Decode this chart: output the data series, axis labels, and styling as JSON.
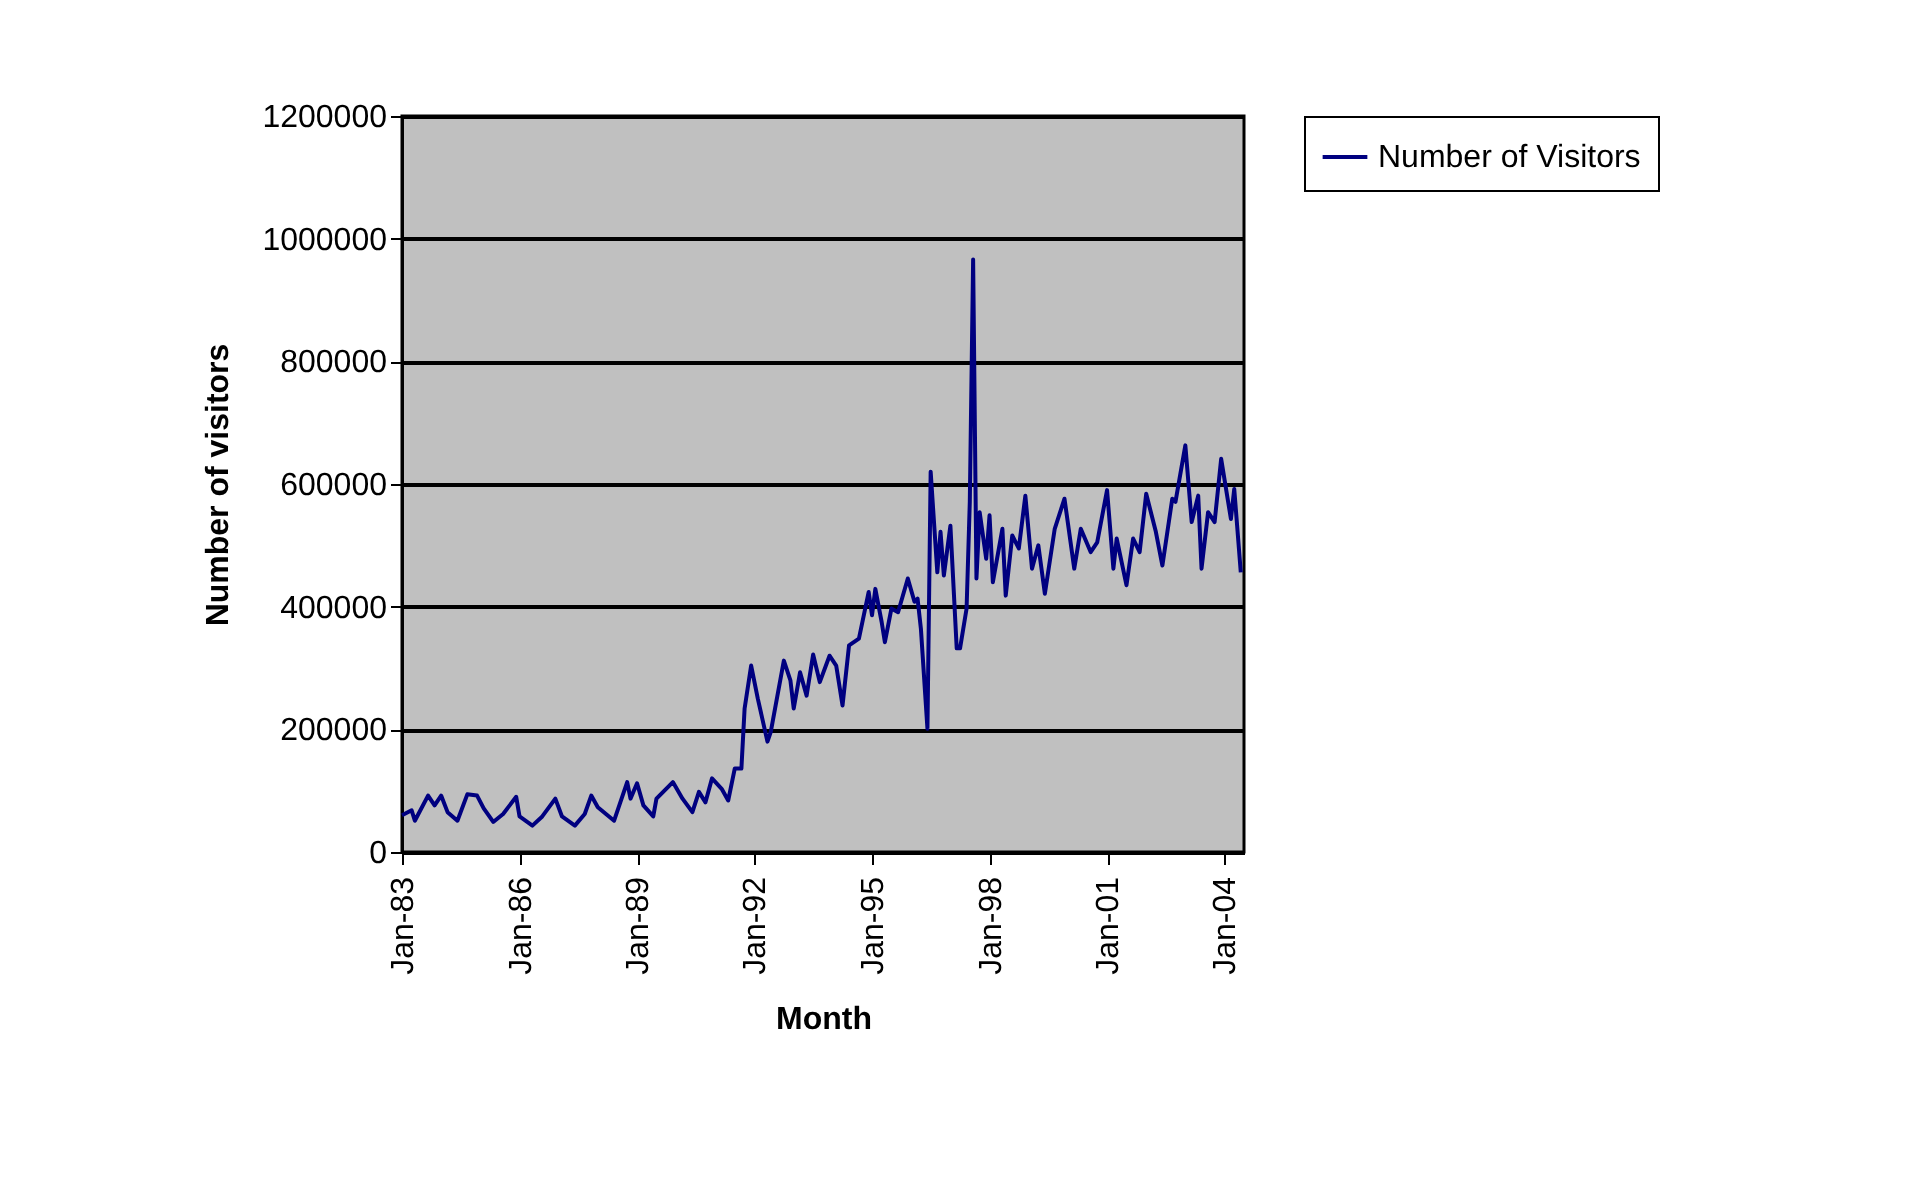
{
  "chart_data": {
    "type": "line",
    "xlabel": "Month",
    "ylabel": "Number of visitors",
    "legend": "right",
    "grid": "y",
    "marker": "none",
    "line_style": "solid",
    "xlim": [
      "1983-01",
      "2004-07"
    ],
    "xticks": [
      {
        "value": "1983-01",
        "label": "Jan-83"
      },
      {
        "value": "1986-01",
        "label": "Jan-86"
      },
      {
        "value": "1989-01",
        "label": "Jan-89"
      },
      {
        "value": "1992-01",
        "label": "Jan-92"
      },
      {
        "value": "1995-01",
        "label": "Jan-95"
      },
      {
        "value": "1998-01",
        "label": "Jan-98"
      },
      {
        "value": "2001-01",
        "label": "Jan-01"
      },
      {
        "value": "2004-01",
        "label": "Jan-04"
      }
    ],
    "ylim": [
      0,
      1200000
    ],
    "yticks": [
      0,
      200000,
      400000,
      600000,
      800000,
      1000000,
      1200000
    ],
    "x": [
      "1983-01",
      "1983-04",
      "1983-05",
      "1983-09",
      "1983-11",
      "1984-01",
      "1984-03",
      "1984-06",
      "1984-09",
      "1984-12",
      "1985-02",
      "1985-05",
      "1985-08",
      "1985-12",
      "1986-01",
      "1986-05",
      "1986-08",
      "1986-12",
      "1987-02",
      "1987-06",
      "1987-09",
      "1987-11",
      "1988-01",
      "1988-06",
      "1988-10",
      "1988-11",
      "1989-01",
      "1989-03",
      "1989-06",
      "1989-07",
      "1989-12",
      "1990-03",
      "1990-06",
      "1990-08",
      "1990-10",
      "1990-12",
      "1991-03",
      "1991-05",
      "1991-07",
      "1991-09",
      "1991-10",
      "1991-12",
      "1992-02",
      "1992-05",
      "1992-06",
      "1992-10",
      "1992-12",
      "1993-01",
      "1993-03",
      "1993-05",
      "1993-07",
      "1993-09",
      "1993-12",
      "1994-02",
      "1994-04",
      "1994-06",
      "1994-09",
      "1994-12",
      "1995-01",
      "1995-02",
      "1995-04",
      "1995-05",
      "1995-07",
      "1995-09",
      "1995-12",
      "1996-02",
      "1996-03",
      "1996-04",
      "1996-06",
      "1996-07",
      "1996-09",
      "1996-10",
      "1996-11",
      "1997-01",
      "1997-03",
      "1997-04",
      "1997-06",
      "1997-07",
      "1997-08",
      "1997-09",
      "1997-10",
      "1997-12",
      "1998-01",
      "1998-02",
      "1998-05",
      "1998-06",
      "1998-08",
      "1998-10",
      "1998-12",
      "1999-02",
      "1999-04",
      "1999-06",
      "1999-09",
      "1999-12",
      "2000-03",
      "2000-05",
      "2000-08",
      "2000-10",
      "2001-01",
      "2001-03",
      "2001-04",
      "2001-07",
      "2001-09",
      "2001-11",
      "2002-01",
      "2002-04",
      "2002-06",
      "2002-09",
      "2002-10",
      "2003-01",
      "2003-03",
      "2003-05",
      "2003-06",
      "2003-08",
      "2003-10",
      "2003-12",
      "2004-03",
      "2004-04",
      "2004-06"
    ],
    "series": [
      {
        "name": "Number of Visitors",
        "color": "#000080",
        "values": [
          60000,
          68000,
          51000,
          92000,
          76000,
          92000,
          65000,
          51000,
          94000,
          92000,
          71000,
          49000,
          62000,
          90000,
          58000,
          43000,
          58000,
          87000,
          58000,
          43000,
          62000,
          92000,
          73000,
          51000,
          114000,
          87000,
          112000,
          76000,
          58000,
          87000,
          114000,
          87000,
          65000,
          98000,
          81000,
          120000,
          103000,
          84000,
          136000,
          136000,
          234000,
          304000,
          250000,
          180000,
          196000,
          312000,
          280000,
          234000,
          293000,
          255000,
          322000,
          277000,
          320000,
          304000,
          239000,
          337000,
          348000,
          424000,
          386000,
          429000,
          375000,
          342000,
          397000,
          391000,
          446000,
          408000,
          413000,
          364000,
          201000,
          620000,
          456000,
          522000,
          451000,
          532000,
          332000,
          332000,
          397000,
          571000,
          966000,
          446000,
          554000,
          478000,
          549000,
          440000,
          527000,
          418000,
          516000,
          495000,
          581000,
          462000,
          500000,
          421000,
          527000,
          576000,
          462000,
          527000,
          489000,
          505000,
          590000,
          462000,
          511000,
          435000,
          511000,
          489000,
          584000,
          522000,
          467000,
          576000,
          571000,
          663000,
          538000,
          581000,
          462000,
          554000,
          538000,
          641000,
          543000,
          592000,
          456000
        ]
      }
    ]
  }
}
